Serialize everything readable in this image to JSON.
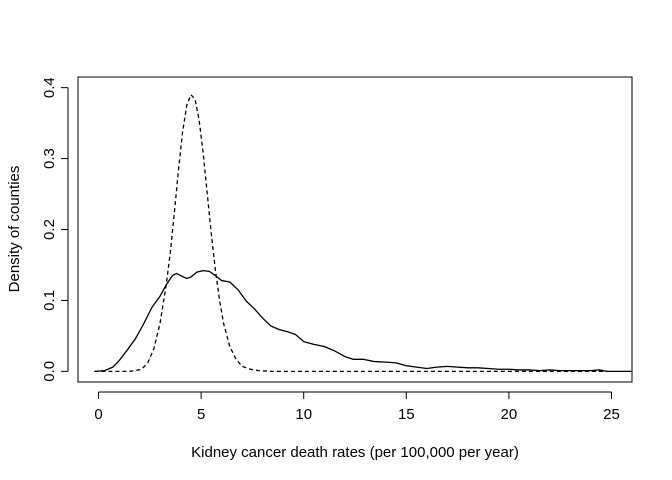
{
  "chart_data": {
    "type": "line",
    "xlabel": "Kidney cancer death rates (per 100,000 per year)",
    "ylabel": "Density of counties",
    "xlim": [
      -1,
      26
    ],
    "ylim": [
      -0.015,
      0.415
    ],
    "x_ticks": [
      0,
      5,
      10,
      15,
      20,
      25
    ],
    "y_ticks": [
      0.0,
      0.1,
      0.2,
      0.3,
      0.4
    ],
    "x_tick_labels": [
      "0",
      "5",
      "10",
      "15",
      "20",
      "25"
    ],
    "y_tick_labels": [
      "0.0",
      "0.1",
      "0.2",
      "0.3",
      "0.4"
    ],
    "grid": false,
    "series": [
      {
        "style": "solid",
        "points": [
          [
            -0.2,
            0.0
          ],
          [
            0.3,
            0.001
          ],
          [
            0.7,
            0.006
          ],
          [
            1.0,
            0.015
          ],
          [
            1.4,
            0.03
          ],
          [
            1.8,
            0.046
          ],
          [
            2.2,
            0.067
          ],
          [
            2.6,
            0.09
          ],
          [
            3.0,
            0.106
          ],
          [
            3.3,
            0.122
          ],
          [
            3.6,
            0.135
          ],
          [
            3.8,
            0.138
          ],
          [
            4.0,
            0.135
          ],
          [
            4.3,
            0.131
          ],
          [
            4.5,
            0.133
          ],
          [
            4.8,
            0.14
          ],
          [
            5.1,
            0.142
          ],
          [
            5.4,
            0.141
          ],
          [
            5.7,
            0.135
          ],
          [
            6.0,
            0.128
          ],
          [
            6.4,
            0.126
          ],
          [
            6.8,
            0.115
          ],
          [
            7.2,
            0.099
          ],
          [
            7.6,
            0.088
          ],
          [
            8.0,
            0.075
          ],
          [
            8.4,
            0.064
          ],
          [
            8.8,
            0.059
          ],
          [
            9.2,
            0.056
          ],
          [
            9.6,
            0.052
          ],
          [
            10.0,
            0.042
          ],
          [
            10.5,
            0.038
          ],
          [
            11.0,
            0.035
          ],
          [
            11.5,
            0.029
          ],
          [
            12.0,
            0.021
          ],
          [
            12.4,
            0.017
          ],
          [
            12.9,
            0.017
          ],
          [
            13.4,
            0.014
          ],
          [
            14.0,
            0.013
          ],
          [
            14.5,
            0.012
          ],
          [
            15.0,
            0.008
          ],
          [
            15.5,
            0.006
          ],
          [
            16.0,
            0.004
          ],
          [
            16.5,
            0.006
          ],
          [
            17.0,
            0.007
          ],
          [
            17.5,
            0.006
          ],
          [
            18.0,
            0.005
          ],
          [
            18.5,
            0.005
          ],
          [
            19.0,
            0.004
          ],
          [
            19.5,
            0.003
          ],
          [
            20.0,
            0.003
          ],
          [
            20.5,
            0.002
          ],
          [
            21.0,
            0.002
          ],
          [
            21.5,
            0.001
          ],
          [
            22.0,
            0.002
          ],
          [
            22.5,
            0.001
          ],
          [
            23.0,
            0.001
          ],
          [
            23.5,
            0.001
          ],
          [
            24.0,
            0.001
          ],
          [
            24.4,
            0.002
          ],
          [
            24.8,
            0.0
          ],
          [
            26.0,
            0.0
          ]
        ]
      },
      {
        "style": "dashed",
        "points": [
          [
            -0.2,
            0.0
          ],
          [
            0.5,
            0.0
          ],
          [
            1.0,
            0.0
          ],
          [
            1.5,
            0.0
          ],
          [
            1.8,
            0.001
          ],
          [
            2.1,
            0.003
          ],
          [
            2.4,
            0.012
          ],
          [
            2.7,
            0.032
          ],
          [
            3.0,
            0.068
          ],
          [
            3.3,
            0.122
          ],
          [
            3.5,
            0.168
          ],
          [
            3.7,
            0.225
          ],
          [
            3.9,
            0.285
          ],
          [
            4.1,
            0.338
          ],
          [
            4.3,
            0.375
          ],
          [
            4.5,
            0.39
          ],
          [
            4.7,
            0.384
          ],
          [
            4.9,
            0.355
          ],
          [
            5.1,
            0.308
          ],
          [
            5.3,
            0.25
          ],
          [
            5.5,
            0.193
          ],
          [
            5.7,
            0.142
          ],
          [
            5.9,
            0.1
          ],
          [
            6.1,
            0.067
          ],
          [
            6.4,
            0.035
          ],
          [
            6.7,
            0.017
          ],
          [
            7.0,
            0.007
          ],
          [
            7.4,
            0.003
          ],
          [
            7.8,
            0.001
          ],
          [
            8.5,
            0.0
          ],
          [
            10.0,
            0.0
          ],
          [
            15.0,
            0.0
          ],
          [
            20.0,
            0.0
          ],
          [
            24.8,
            0.0
          ]
        ]
      }
    ]
  }
}
